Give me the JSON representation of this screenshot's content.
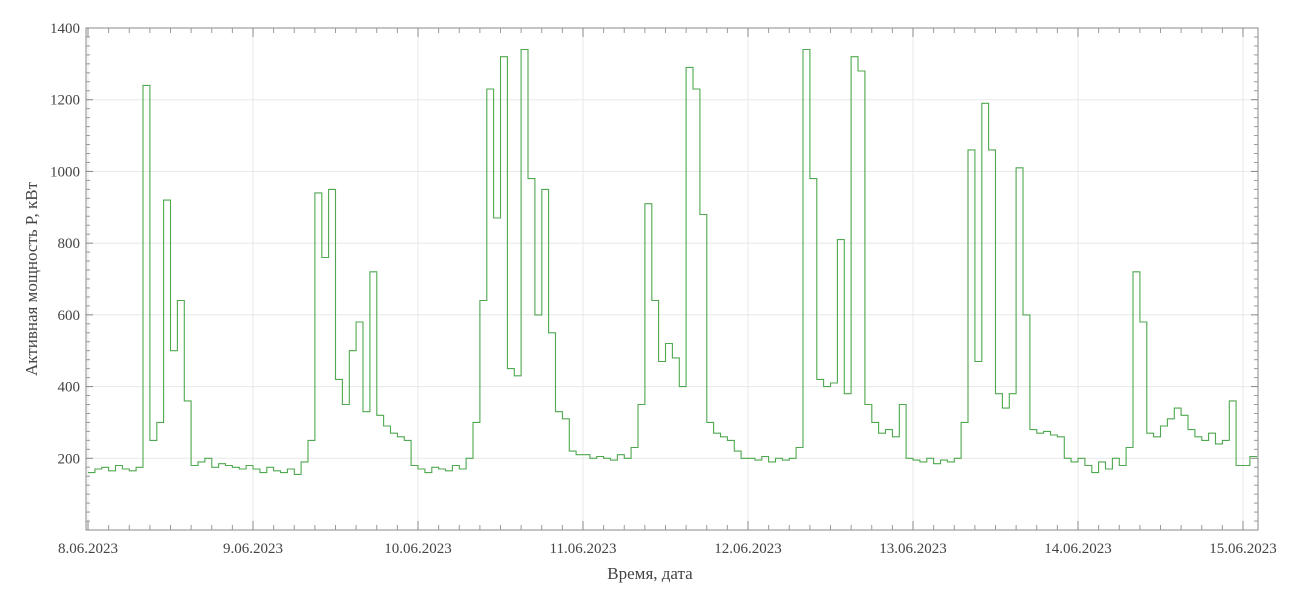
{
  "chart_data": {
    "type": "line",
    "title": "",
    "xlabel": "Время, дата",
    "ylabel": "Активная мощность P, кВт",
    "ylim": [
      0,
      1400
    ],
    "yticks": [
      "200",
      "400",
      "600",
      "800",
      "1000",
      "1200",
      "1400"
    ],
    "xticks": [
      "8.06.2023",
      "9.06.2023",
      "10.06.2023",
      "11.06.2023",
      "12.06.2023",
      "13.06.2023",
      "14.06.2023",
      "15.06.2023"
    ],
    "grid": true,
    "line_color": "#4fa84f",
    "series": [
      {
        "days": [
          {
            "date": "8.06.2023",
            "hourly": [
              160,
              170,
              175,
              165,
              180,
              170,
              165,
              175,
              1240,
              250,
              300,
              920,
              500,
              640,
              360,
              180,
              190,
              200,
              175,
              185,
              180,
              175,
              170,
              180
            ]
          },
          {
            "date": "9.06.2023",
            "hourly": [
              170,
              160,
              175,
              165,
              160,
              170,
              155,
              190,
              250,
              940,
              760,
              950,
              420,
              350,
              500,
              580,
              330,
              720,
              320,
              290,
              270,
              260,
              250,
              180
            ]
          },
          {
            "date": "10.06.2023",
            "hourly": [
              170,
              160,
              175,
              170,
              165,
              180,
              170,
              200,
              300,
              640,
              1230,
              870,
              1320,
              450,
              430,
              1340,
              980,
              600,
              950,
              550,
              330,
              310,
              220,
              210
            ]
          },
          {
            "date": "11.06.2023",
            "hourly": [
              210,
              200,
              205,
              200,
              195,
              210,
              200,
              230,
              350,
              910,
              640,
              470,
              520,
              480,
              400,
              1290,
              1230,
              880,
              300,
              270,
              260,
              250,
              220,
              200
            ]
          },
          {
            "date": "12.06.2023",
            "hourly": [
              200,
              195,
              205,
              190,
              200,
              195,
              200,
              230,
              1340,
              980,
              420,
              400,
              410,
              810,
              380,
              1320,
              1280,
              350,
              300,
              270,
              280,
              260,
              350,
              200
            ]
          },
          {
            "date": "13.06.2023",
            "hourly": [
              195,
              190,
              200,
              185,
              195,
              190,
              200,
              300,
              1060,
              470,
              1190,
              1060,
              380,
              340,
              380,
              1010,
              600,
              280,
              270,
              275,
              265,
              260,
              200,
              190
            ]
          },
          {
            "date": "14.06.2023",
            "hourly": [
              200,
              180,
              160,
              190,
              170,
              200,
              180,
              230,
              720,
              580,
              270,
              260,
              290,
              310,
              340,
              320,
              280,
              260,
              250,
              270,
              240,
              250,
              360,
              180
            ]
          },
          {
            "date": "15.06.2023",
            "hourly": [
              180,
              205,
              205
            ]
          }
        ]
      }
    ]
  }
}
